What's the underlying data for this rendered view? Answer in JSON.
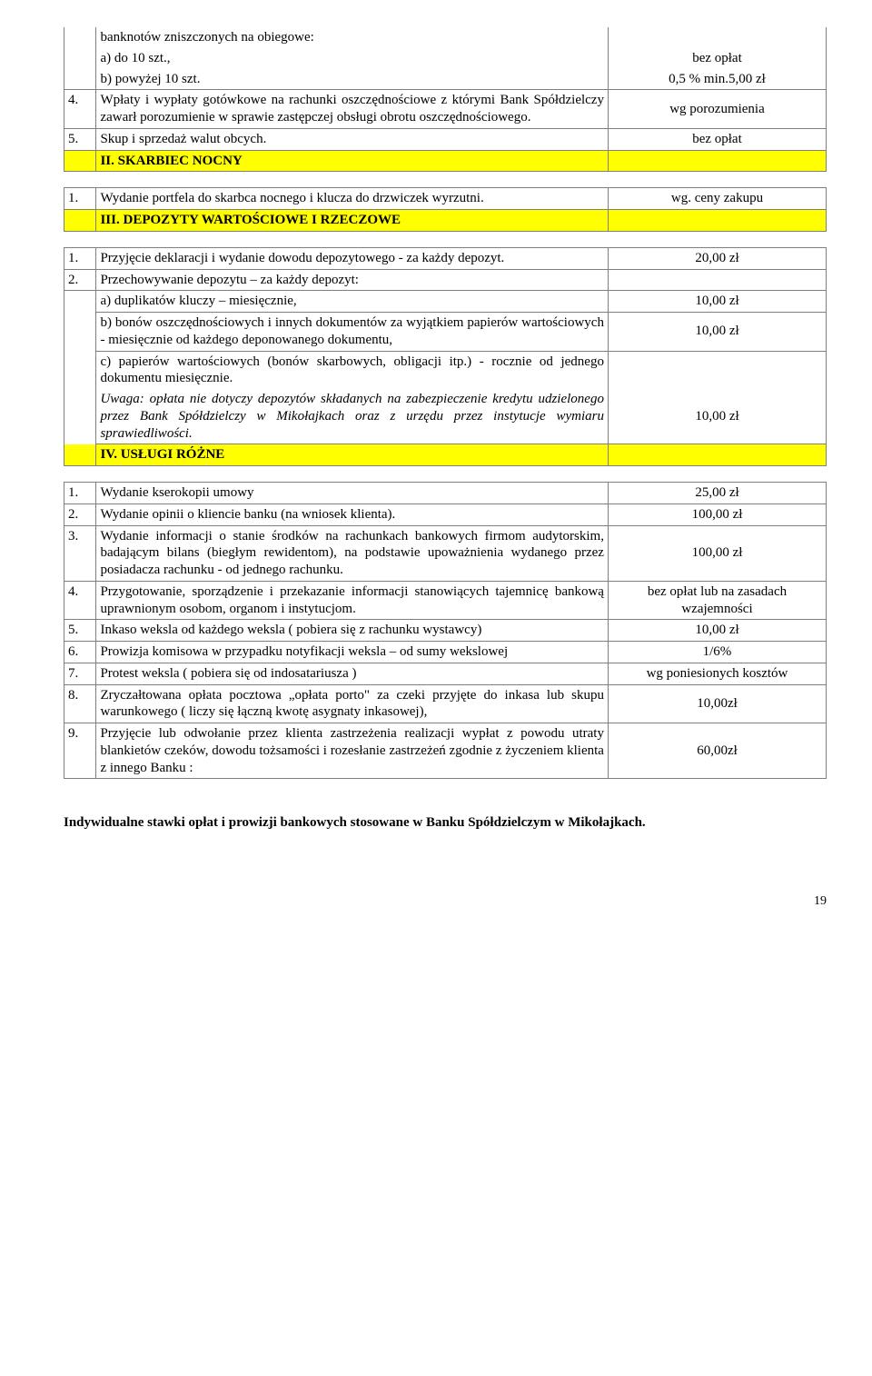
{
  "rows": {
    "r0_desc": "banknotów zniszczonych na obiegowe:",
    "r1_desc": "a) do 10 szt.,",
    "r1_val": "bez opłat",
    "r2_desc": "b) powyżej 10 szt.",
    "r2_val": "0,5 % min.5,00 zł",
    "r3_num": "4.",
    "r3_desc": "Wpłaty i wypłaty gotówkowe na rachunki oszczędnościowe z którymi Bank Spółdzielczy zawarł porozumienie w sprawie zastępczej obsługi obrotu oszczędnościowego.",
    "r3_val": "wg porozumienia",
    "r4_num": "5.",
    "r4_desc": "Skup i sprzedaż walut obcych.",
    "r4_val": "bez opłat",
    "s2": "II. SKARBIEC NOCNY",
    "r5_num": "1.",
    "r5_desc": "Wydanie portfela do skarbca nocnego i klucza do drzwiczek wyrzutni.",
    "r5_val": "wg. ceny zakupu",
    "s3": "III. DEPOZYTY WARTOŚCIOWE I RZECZOWE",
    "r6_num": "1.",
    "r6_desc": "Przyjęcie deklaracji i wydanie dowodu depozytowego - za każdy depozyt.",
    "r6_val": "20,00 zł",
    "r7_num": "2.",
    "r7_desc": "Przechowywanie depozytu – za każdy depozyt:",
    "r8_desc": "a) duplikatów kluczy – miesięcznie,",
    "r8_val": "10,00 zł",
    "r9_desc": "b) bonów oszczędnościowych i innych dokumentów za wyjątkiem papierów wartościowych - miesięcznie od każdego deponowanego dokumentu,",
    "r9_val": "10,00 zł",
    "r10_desc": "c) papierów wartościowych (bonów skarbowych, obligacji itp.) - rocznie od jednego dokumentu miesięcznie.",
    "r10_val": "10,00 zł",
    "r11_desc": "Uwaga: opłata nie dotyczy depozytów składanych na zabezpieczenie kredytu udzielonego przez Bank Spółdzielczy w Mikołajkach  oraz z urzędu przez instytucje wymiaru sprawiedliwości.",
    "s4": "IV.   USŁUGI RÓŻNE",
    "r12_num": "1.",
    "r12_desc": "Wydanie kserokopii umowy",
    "r12_val": "25,00 zł",
    "r13_num": "2.",
    "r13_desc": "Wydanie opinii o kliencie banku (na wniosek klienta).",
    "r13_val": "100,00 zł",
    "r14_num": "3.",
    "r14_desc": "Wydanie informacji o stanie środków na rachunkach bankowych firmom audytorskim, badającym bilans (biegłym rewidentom), na podstawie upoważnienia wydanego przez posiadacza rachunku - od jednego rachunku.",
    "r14_val": "100,00 zł",
    "r15_num": "4.",
    "r15_desc": "Przygotowanie, sporządzenie i przekazanie informacji stanowiących tajemnicę bankową uprawnionym osobom, organom i instytucjom.",
    "r15_val": "bez opłat lub na zasadach wzajemności",
    "r16_num": "5.",
    "r16_desc": "Inkaso weksla od każdego weksla ( pobiera się z rachunku wystawcy)",
    "r16_val": "10,00 zł",
    "r17_num": "6.",
    "r17_desc": "Prowizja komisowa w przypadku notyfikacji weksla – od sumy wekslowej",
    "r17_val": "1/6%",
    "r18_num": "7.",
    "r18_desc": "Protest weksla ( pobiera się od indosatariusza )",
    "r18_val": "wg poniesionych kosztów",
    "r19_num": "8.",
    "r19_desc": "Zryczałtowana opłata pocztowa „opłata porto\" za czeki przyjęte do inkasa lub skupu warunkowego ( liczy się łączną kwotę asygnaty inkasowej),",
    "r19_val": "10,00zł",
    "r20_num": "9.",
    "r20_desc": "Przyjęcie lub odwołanie przez klienta zastrzeżenia realizacji wypłat z powodu utraty blankietów czeków, dowodu tożsamości i rozesłanie zastrzeżeń zgodnie z życzeniem klienta z innego Banku :",
    "r20_val": "60,00zł"
  },
  "footer": "Indywidualne stawki opłat i prowizji bankowych stosowane w Banku Spółdzielczym w Mikołajkach.",
  "page": "19"
}
